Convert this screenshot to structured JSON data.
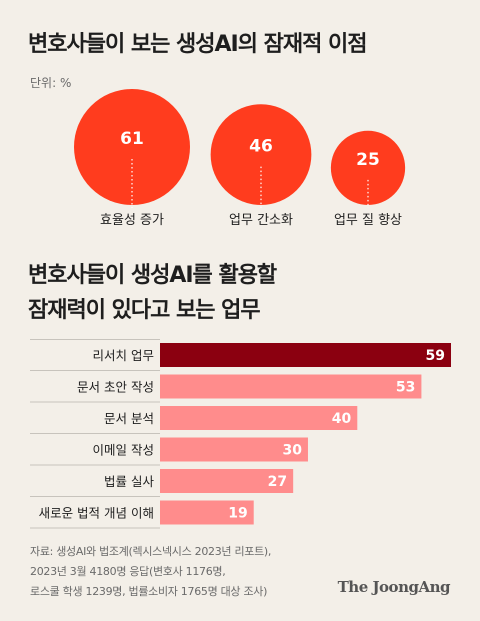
{
  "title": "변호사들이 보는 생성AI의 잠재적 이점",
  "unit_label": "단위: %",
  "subtitle_lines": [
    "변호사들이 생성AI를 활용할",
    "잠재력이 있다고 보는 업무"
  ],
  "source_lines": [
    "자료: 생성AI와 법조계(렉시스넥시스 2023년 리포트),",
    "2023년 3월 4180명 응답(변호사 1176명,",
    "로스쿨 학생 1239명, 법률소비자 1765명 대상 조사)"
  ],
  "brand": "The JoongAng",
  "colors": {
    "bubble": "#ff3c1e",
    "bar_top": "#8b0010",
    "bar": "#ff8c8c",
    "background": "#f3efe8"
  },
  "chart_data": [
    {
      "type": "bubble",
      "categories": [
        "효율성 증가",
        "업무 간소화",
        "업무 질 향상"
      ],
      "values": [
        61,
        46,
        25
      ]
    },
    {
      "type": "bar",
      "orientation": "horizontal",
      "categories": [
        "리서치 업무",
        "문서 초안 작성",
        "문서 분석",
        "이메일 작성",
        "법률 실사",
        "새로운 법적 개념 이해"
      ],
      "values": [
        59,
        53,
        40,
        30,
        27,
        19
      ]
    }
  ]
}
